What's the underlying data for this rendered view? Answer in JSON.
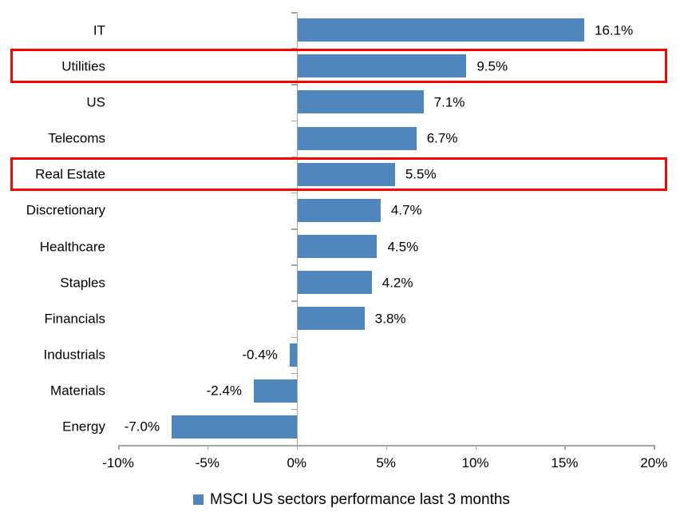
{
  "chart_data": {
    "type": "bar",
    "orientation": "horizontal",
    "title": "",
    "categories": [
      "IT",
      "Utilities",
      "US",
      "Telecoms",
      "Real Estate",
      "Discretionary",
      "Healthcare",
      "Staples",
      "Financials",
      "Industrials",
      "Materials",
      "Energy"
    ],
    "values": [
      16.1,
      9.5,
      7.1,
      6.7,
      5.5,
      4.7,
      4.5,
      4.2,
      3.8,
      -0.4,
      -2.4,
      -7.0
    ],
    "value_labels": [
      "16.1%",
      "9.5%",
      "7.1%",
      "6.7%",
      "5.5%",
      "4.7%",
      "4.5%",
      "4.2%",
      "3.8%",
      "-0.4%",
      "-2.4%",
      "-7.0%"
    ],
    "highlighted_categories": [
      "Utilities",
      "Real Estate"
    ],
    "x_ticks": [
      {
        "label": "-10%",
        "value": -10
      },
      {
        "label": "-5%",
        "value": -5
      },
      {
        "label": "0%",
        "value": 0
      },
      {
        "label": "5%",
        "value": 5
      },
      {
        "label": "10%",
        "value": 10
      },
      {
        "label": "15%",
        "value": 15
      },
      {
        "label": "20%",
        "value": 20
      }
    ],
    "xlim": [
      -10,
      20
    ],
    "grid": false,
    "legend": "MSCI US sectors performance last 3 months",
    "legend_position": "bottom-center",
    "colors": {
      "bar": "#4e86bd",
      "highlight_border": "#fe0000",
      "axis": "#a6a6a6",
      "text": "#000000",
      "background": "#ffffff"
    }
  }
}
